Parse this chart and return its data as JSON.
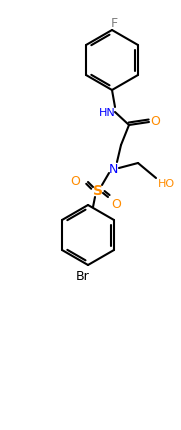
{
  "bg_color": "#ffffff",
  "line_color": "#000000",
  "atom_colors": {
    "F": "#808080",
    "N": "#0000ff",
    "O": "#ff8c00",
    "S": "#ff8c00",
    "Br": "#000000",
    "HN": "#0000ff",
    "HO": "#ff8c00"
  },
  "figsize": [
    1.81,
    4.31
  ],
  "dpi": 100
}
